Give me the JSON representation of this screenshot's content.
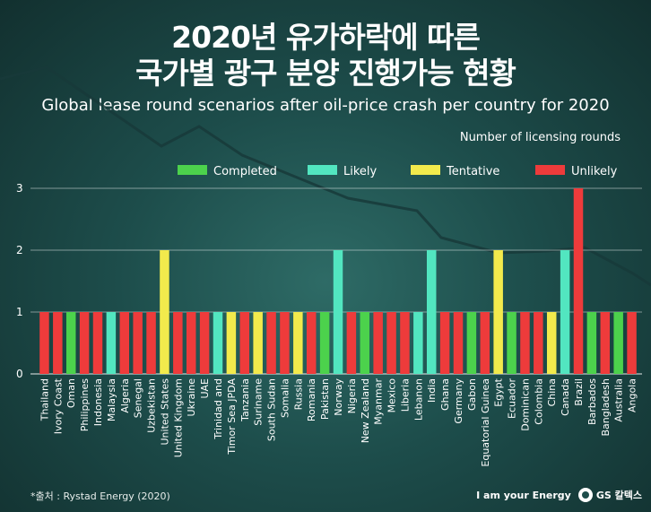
{
  "header": {
    "title_line1": "2020년 유가하락에 따른",
    "title_line2": "국가별 광구 분양 진행가능 현황",
    "subtitle": "Global lease round scenarios after oil-price crash per country for 2020"
  },
  "footer": {
    "source": "*출처 : Rystad Energy (2020)",
    "tagline": "I am your Energy",
    "logo_text": "GS 칼텍스"
  },
  "colors": {
    "Completed": "#4cd24c",
    "Likely": "#52e6c0",
    "Tentative": "#f2ea4c",
    "Unlikely": "#ee3b3b"
  },
  "chart_data": {
    "type": "bar",
    "title": "Global lease round scenarios after oil-price crash per country for 2020",
    "ylabel": "Number of licensing rounds",
    "xlabel": "",
    "ylim": [
      0,
      3
    ],
    "yticks": [
      0,
      1,
      2,
      3
    ],
    "grid": true,
    "legend_position": "top-right",
    "legend": [
      "Completed",
      "Likely",
      "Tentative",
      "Unlikely"
    ],
    "categories": [
      "Thailand",
      "Ivory Coast",
      "Oman",
      "Philippines",
      "Indonesia",
      "Malaysia",
      "Algeria",
      "Senegal",
      "Uzbekistan",
      "United States",
      "United Kingdom",
      "Ukraine",
      "UAE",
      "Trinidad and",
      "Timor Sea JPDA",
      "Tanzania",
      "Suriname",
      "South Sudan",
      "Somalia",
      "Russia",
      "Romania",
      "Pakistan",
      "Norway",
      "Nigeria",
      "New Zealand",
      "Myanmar",
      "Mexico",
      "Liberia",
      "Lebanon",
      "India",
      "Ghana",
      "Germany",
      "Gabon",
      "Equatorial Guinea",
      "Egypt",
      "Ecuador",
      "Dominican",
      "Colombia",
      "China",
      "Canada",
      "Brazil",
      "Barbados",
      "Bangladesh",
      "Australia",
      "Angola"
    ],
    "values": [
      1,
      1,
      1,
      1,
      1,
      1,
      1,
      1,
      1,
      2,
      1,
      1,
      1,
      1,
      1,
      1,
      1,
      1,
      1,
      1,
      1,
      1,
      2,
      1,
      1,
      1,
      1,
      1,
      1,
      2,
      1,
      1,
      1,
      1,
      2,
      1,
      1,
      1,
      1,
      2,
      3,
      1,
      1,
      1,
      1
    ],
    "status": [
      "Unlikely",
      "Unlikely",
      "Completed",
      "Unlikely",
      "Unlikely",
      "Likely",
      "Unlikely",
      "Unlikely",
      "Unlikely",
      "Tentative",
      "Unlikely",
      "Unlikely",
      "Unlikely",
      "Likely",
      "Tentative",
      "Unlikely",
      "Tentative",
      "Unlikely",
      "Unlikely",
      "Tentative",
      "Unlikely",
      "Completed",
      "Likely",
      "Unlikely",
      "Completed",
      "Unlikely",
      "Unlikely",
      "Unlikely",
      "Likely",
      "Likely",
      "Unlikely",
      "Unlikely",
      "Completed",
      "Unlikely",
      "Tentative",
      "Completed",
      "Unlikely",
      "Unlikely",
      "Tentative",
      "Likely",
      "Unlikely",
      "Completed",
      "Unlikely",
      "Completed",
      "Unlikely"
    ]
  }
}
